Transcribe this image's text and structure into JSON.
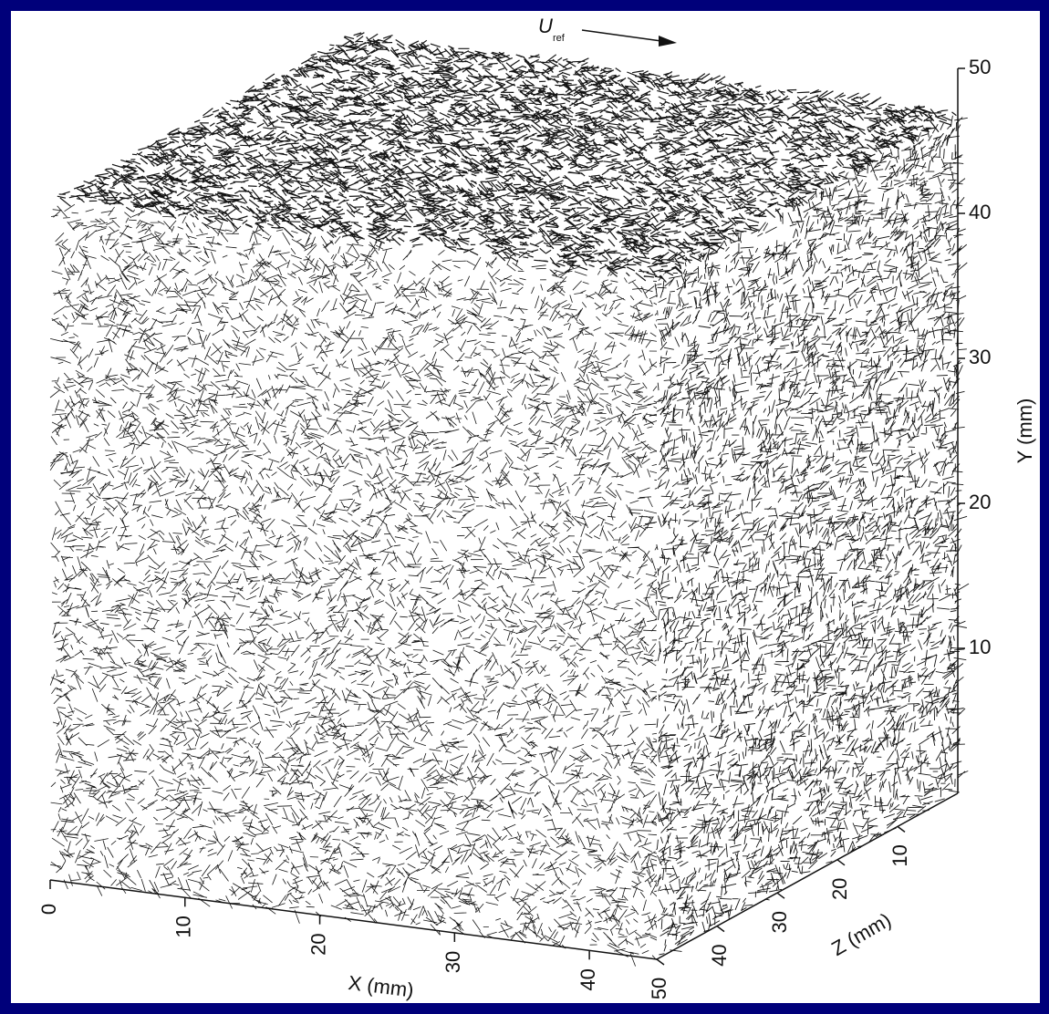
{
  "chart_data": {
    "type": "vector3d",
    "annotation": {
      "text": "U",
      "subscript": "ref"
    },
    "x_label": "X (mm)",
    "y_label": "Y (mm)",
    "z_label": "Z (mm)",
    "xlim": [
      0,
      45
    ],
    "ylim": [
      0,
      50
    ],
    "zlim": [
      0,
      50
    ],
    "xticks": [
      0,
      10,
      20,
      30,
      40
    ],
    "yticks": [
      10,
      20,
      30,
      40,
      50
    ],
    "zticks": [
      10,
      20,
      30,
      40,
      50
    ]
  }
}
